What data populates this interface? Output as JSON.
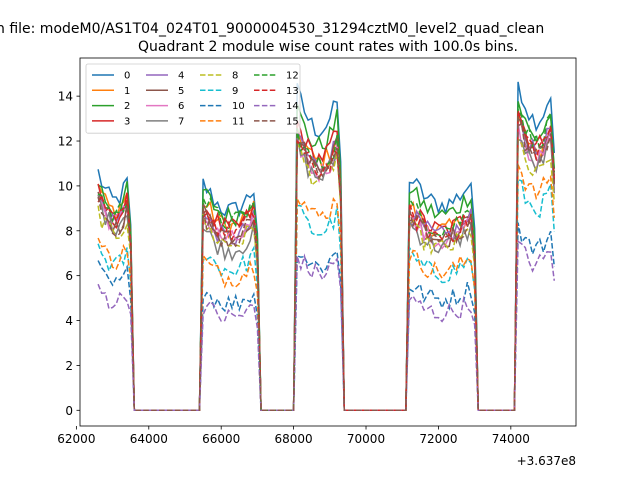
{
  "figure": {
    "suptitle": "n file: modeM0/AS1T04_024T01_9000004530_31294cztM0_level2_quad_clean",
    "title": "Quadrant 2 module wise count rates with 100.0s bins."
  },
  "chart_data": {
    "type": "line",
    "title": "Quadrant 2 module wise count rates with 100.0s bins.",
    "xlabel": "",
    "ylabel": "",
    "x_offset_label": "+3.637e8",
    "x_offset": 363700000,
    "xlim": [
      62100,
      75800
    ],
    "ylim": [
      -0.7,
      15.7
    ],
    "x_ticks": [
      62000,
      64000,
      66000,
      68000,
      70000,
      72000,
      74000
    ],
    "x_tick_labels": [
      "62000",
      "64000",
      "66000",
      "68000",
      "70000",
      "72000",
      "74000"
    ],
    "y_ticks": [
      0,
      2,
      4,
      6,
      8,
      10,
      12,
      14
    ],
    "y_tick_labels": [
      "0",
      "2",
      "4",
      "6",
      "8",
      "10",
      "12",
      "14"
    ],
    "grid": false,
    "legend": {
      "position": "top-left",
      "columns": 4
    },
    "bin_seconds": 100,
    "on_segments": [
      {
        "start": 62600,
        "end": 63500
      },
      {
        "start": 65500,
        "end": 67000
      },
      {
        "start": 68100,
        "end": 69300
      },
      {
        "start": 71200,
        "end": 73000
      },
      {
        "start": 74200,
        "end": 75200
      }
    ],
    "gap_level": 0,
    "series": [
      {
        "name": "0",
        "color": "#1f77b4",
        "dash": "solid",
        "levels": [
          10.6,
          10.1,
          14.2,
          10.4,
          14.7
        ]
      },
      {
        "name": "1",
        "color": "#ff7f0e",
        "dash": "solid",
        "levels": [
          10.1,
          9.3,
          12.6,
          9.1,
          13.0
        ]
      },
      {
        "name": "2",
        "color": "#2ca02c",
        "dash": "solid",
        "levels": [
          10.2,
          9.8,
          13.4,
          9.9,
          13.8
        ]
      },
      {
        "name": "3",
        "color": "#d62728",
        "dash": "solid",
        "levels": [
          9.7,
          9.2,
          12.8,
          9.1,
          13.4
        ]
      },
      {
        "name": "4",
        "color": "#9467bd",
        "dash": "solid",
        "levels": [
          9.6,
          8.7,
          12.4,
          8.8,
          13.1
        ]
      },
      {
        "name": "5",
        "color": "#8c564b",
        "dash": "solid",
        "levels": [
          9.3,
          8.9,
          12.3,
          8.7,
          12.9
        ]
      },
      {
        "name": "6",
        "color": "#e377c2",
        "dash": "solid",
        "levels": [
          9.5,
          8.6,
          12.0,
          8.5,
          12.6
        ]
      },
      {
        "name": "7",
        "color": "#7f7f7f",
        "dash": "solid",
        "levels": [
          9.4,
          8.1,
          11.8,
          8.3,
          12.4
        ]
      },
      {
        "name": "8",
        "color": "#bcbd22",
        "dash": "dashed",
        "levels": [
          8.9,
          8.4,
          11.7,
          8.2,
          11.9
        ]
      },
      {
        "name": "9",
        "color": "#17becf",
        "dash": "dashed",
        "levels": [
          7.3,
          7.1,
          9.0,
          6.9,
          10.2
        ]
      },
      {
        "name": "10",
        "color": "#1f77b4",
        "dash": "dashed",
        "levels": [
          6.3,
          5.4,
          7.3,
          5.6,
          8.2
        ]
      },
      {
        "name": "11",
        "color": "#ff7f0e",
        "dash": "dashed",
        "levels": [
          7.6,
          6.7,
          9.8,
          7.0,
          11.0
        ]
      },
      {
        "name": "12",
        "color": "#2ca02c",
        "dash": "dashed",
        "levels": [
          9.9,
          9.5,
          12.4,
          9.2,
          13.6
        ]
      },
      {
        "name": "13",
        "color": "#d62728",
        "dash": "dashed",
        "levels": [
          9.5,
          9.0,
          12.1,
          8.8,
          13.2
        ]
      },
      {
        "name": "14",
        "color": "#9467bd",
        "dash": "dashed",
        "levels": [
          5.5,
          4.7,
          6.9,
          4.9,
          7.4
        ]
      },
      {
        "name": "15",
        "color": "#8c564b",
        "dash": "dashed",
        "levels": [
          9.2,
          8.7,
          12.2,
          8.6,
          12.9
        ]
      }
    ]
  }
}
